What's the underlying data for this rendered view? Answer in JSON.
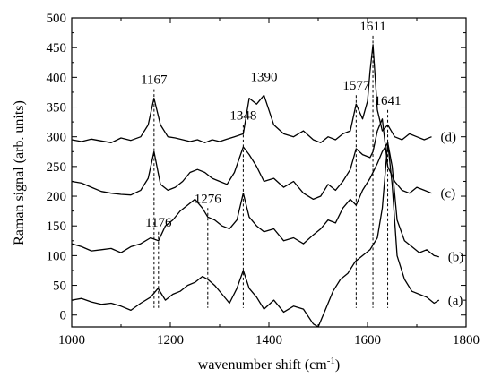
{
  "chart_data": {
    "type": "line",
    "xlabel_main": "wavenumber shift (cm",
    "xlabel_sup": "-1",
    "xlabel_end": ")",
    "ylabel": "Raman signal (arb. units)",
    "xlim": [
      1000,
      1800
    ],
    "ylim": [
      -20,
      500
    ],
    "x_ticks": [
      1000,
      1200,
      1400,
      1600,
      1800
    ],
    "x_tick_labels": [
      "1000",
      "1200",
      "1400",
      "1600",
      "1800"
    ],
    "y_ticks": [
      0,
      50,
      100,
      150,
      200,
      250,
      300,
      350,
      400,
      450,
      500
    ],
    "y_tick_labels": [
      "0",
      "50",
      "100",
      "150",
      "200",
      "250",
      "300",
      "350",
      "400",
      "450",
      "500"
    ],
    "grid": false,
    "series": [
      {
        "name": "(a)",
        "x": [
          1000,
          1020,
          1040,
          1060,
          1080,
          1100,
          1120,
          1140,
          1160,
          1175,
          1190,
          1205,
          1220,
          1235,
          1250,
          1265,
          1276,
          1290,
          1305,
          1320,
          1335,
          1348,
          1360,
          1375,
          1390,
          1410,
          1430,
          1450,
          1470,
          1490,
          1500,
          1515,
          1530,
          1545,
          1560,
          1575,
          1590,
          1605,
          1620,
          1630,
          1641,
          1650,
          1660,
          1675,
          1690,
          1705,
          1720,
          1735,
          1745
        ],
        "y": [
          25,
          28,
          22,
          18,
          20,
          15,
          8,
          20,
          30,
          45,
          25,
          35,
          40,
          50,
          55,
          65,
          60,
          50,
          35,
          20,
          45,
          75,
          45,
          30,
          10,
          25,
          5,
          15,
          10,
          -15,
          -20,
          10,
          40,
          60,
          70,
          90,
          100,
          110,
          130,
          180,
          290,
          220,
          100,
          60,
          40,
          35,
          30,
          20,
          25
        ]
      },
      {
        "name": "(b)",
        "x": [
          1000,
          1020,
          1040,
          1060,
          1080,
          1100,
          1120,
          1140,
          1160,
          1176,
          1190,
          1205,
          1220,
          1235,
          1250,
          1265,
          1276,
          1290,
          1305,
          1320,
          1335,
          1348,
          1360,
          1375,
          1390,
          1410,
          1430,
          1450,
          1470,
          1490,
          1505,
          1520,
          1535,
          1550,
          1565,
          1577,
          1590,
          1605,
          1620,
          1630,
          1641,
          1650,
          1660,
          1675,
          1690,
          1705,
          1720,
          1735,
          1745
        ],
        "y": [
          120,
          115,
          108,
          110,
          112,
          105,
          115,
          120,
          130,
          125,
          150,
          160,
          175,
          185,
          195,
          180,
          165,
          160,
          150,
          145,
          160,
          205,
          165,
          150,
          140,
          145,
          125,
          130,
          120,
          135,
          145,
          160,
          155,
          180,
          195,
          185,
          210,
          230,
          255,
          275,
          290,
          250,
          160,
          125,
          115,
          105,
          110,
          100,
          98
        ]
      },
      {
        "name": "(c)",
        "x": [
          1000,
          1020,
          1040,
          1060,
          1080,
          1100,
          1120,
          1140,
          1155,
          1167,
          1180,
          1195,
          1210,
          1225,
          1240,
          1255,
          1270,
          1285,
          1300,
          1315,
          1330,
          1348,
          1360,
          1375,
          1390,
          1410,
          1430,
          1450,
          1470,
          1490,
          1505,
          1520,
          1535,
          1550,
          1565,
          1577,
          1590,
          1605,
          1611,
          1620,
          1630,
          1641,
          1655,
          1670,
          1685,
          1700,
          1715,
          1730
        ],
        "y": [
          225,
          222,
          215,
          208,
          205,
          203,
          202,
          210,
          230,
          275,
          220,
          210,
          215,
          225,
          240,
          245,
          240,
          230,
          225,
          220,
          240,
          283,
          270,
          250,
          225,
          230,
          215,
          225,
          205,
          195,
          200,
          220,
          210,
          225,
          245,
          280,
          270,
          265,
          275,
          310,
          330,
          250,
          225,
          210,
          205,
          215,
          210,
          205
        ]
      },
      {
        "name": "(d)",
        "x": [
          1000,
          1020,
          1040,
          1060,
          1080,
          1100,
          1120,
          1140,
          1155,
          1167,
          1180,
          1195,
          1210,
          1225,
          1240,
          1255,
          1270,
          1285,
          1300,
          1315,
          1330,
          1348,
          1360,
          1375,
          1390,
          1410,
          1430,
          1450,
          1470,
          1490,
          1505,
          1520,
          1535,
          1550,
          1565,
          1577,
          1590,
          1600,
          1605,
          1611,
          1620,
          1630,
          1641,
          1655,
          1670,
          1685,
          1700,
          1715,
          1730
        ],
        "y": [
          295,
          292,
          296,
          293,
          290,
          298,
          294,
          300,
          320,
          365,
          320,
          300,
          298,
          295,
          292,
          295,
          290,
          295,
          292,
          296,
          300,
          305,
          365,
          355,
          370,
          320,
          305,
          300,
          310,
          295,
          290,
          300,
          295,
          305,
          310,
          355,
          330,
          360,
          410,
          455,
          345,
          310,
          320,
          300,
          295,
          305,
          300,
          295,
          300
        ]
      }
    ],
    "peak_labels": [
      {
        "text": "1167",
        "x": 1167,
        "y_top": 365,
        "y_bottom": 0
      },
      {
        "text": "1348",
        "x": 1348,
        "y_top": 305,
        "y_bottom": 0
      },
      {
        "text": "1390",
        "x": 1390,
        "y_top": 370,
        "y_bottom": 0
      },
      {
        "text": "1577",
        "x": 1577,
        "y_top": 355,
        "y_bottom": 0
      },
      {
        "text": "1611",
        "x": 1611,
        "y_top": 455,
        "y_bottom": 0
      },
      {
        "text": "1641",
        "x": 1641,
        "y_top": 330,
        "y_bottom": 0
      },
      {
        "text": "1176",
        "x": 1176,
        "y_top": 125,
        "y_bottom": 0
      },
      {
        "text": "1276",
        "x": 1276,
        "y_top": 165,
        "y_bottom": 0
      }
    ],
    "trace_labels": [
      "(a)",
      "(b)",
      "(c)",
      "(d)"
    ]
  }
}
